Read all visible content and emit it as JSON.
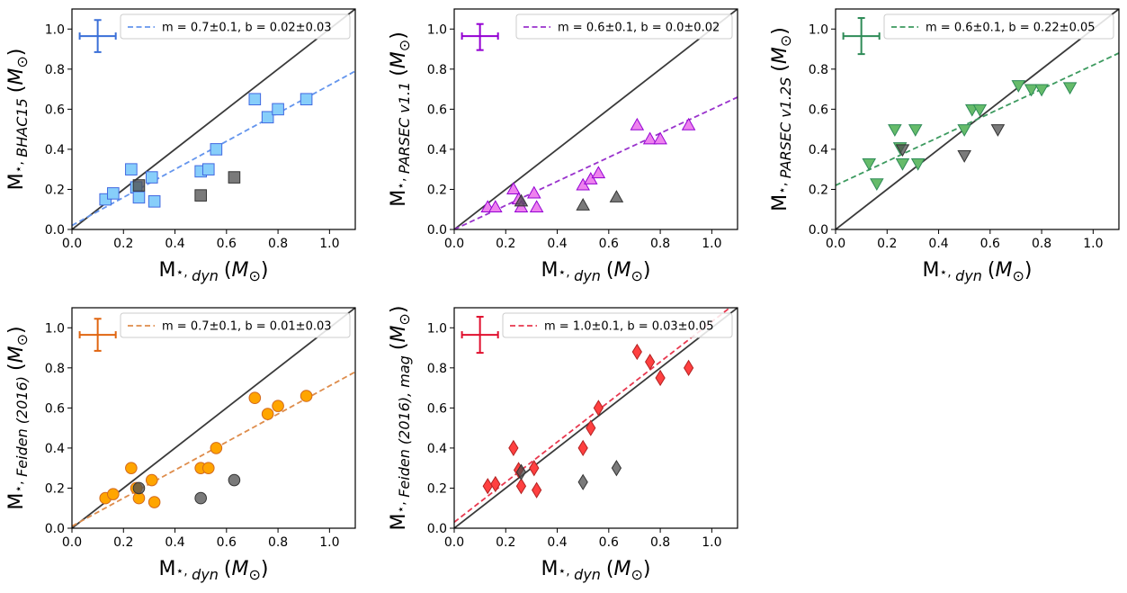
{
  "figure": {
    "x_axis_title": "M⋆, dyn (M⊙)",
    "x_ticks": [
      "0.0",
      "0.2",
      "0.4",
      "0.6",
      "0.8",
      "1.0"
    ],
    "y_ticks": [
      "0.0",
      "0.2",
      "0.4",
      "0.6",
      "0.8",
      "1.0"
    ]
  },
  "chart_data": [
    {
      "type": "scatter",
      "model": "BHAC15",
      "ylabel": "M⋆, BHAC15 (M⊙)",
      "xlabel": "M⋆, dyn (M⊙)",
      "xlim": [
        0,
        1.1
      ],
      "ylim": [
        0,
        1.1
      ],
      "marker": "square",
      "color": "#87cefa",
      "edge_color": "#4169e1",
      "fit_color": "#6495ed",
      "fit": {
        "m": 0.7,
        "b": 0.02
      },
      "legend": "m = 0.7±0.1, b = 0.02±0.03",
      "error_bar": {
        "x": 0.1,
        "y": 0.965,
        "x_err": 0.07,
        "y_err_up": 0.08,
        "y_err_down": 0.08
      },
      "points": [
        [
          0.13,
          0.15
        ],
        [
          0.16,
          0.18
        ],
        [
          0.23,
          0.3
        ],
        [
          0.25,
          0.21
        ],
        [
          0.26,
          0.16
        ],
        [
          0.31,
          0.26
        ],
        [
          0.32,
          0.14
        ],
        [
          0.5,
          0.29
        ],
        [
          0.53,
          0.3
        ],
        [
          0.56,
          0.4
        ],
        [
          0.71,
          0.65
        ],
        [
          0.76,
          0.56
        ],
        [
          0.8,
          0.6
        ],
        [
          0.91,
          0.65
        ]
      ],
      "grey_points": [
        [
          0.26,
          0.22
        ],
        [
          0.5,
          0.17
        ],
        [
          0.63,
          0.26
        ]
      ]
    },
    {
      "type": "scatter",
      "model": "PARSEC v1.1",
      "ylabel": "M⋆, PARSEC v1.1 (M⊙)",
      "xlabel": "M⋆, dyn (M⊙)",
      "xlim": [
        0,
        1.1
      ],
      "ylim": [
        0,
        1.1
      ],
      "marker": "triangle-up",
      "color": "#ee82ee",
      "edge_color": "#9400d3",
      "fit_color": "#9932cc",
      "fit": {
        "m": 0.6,
        "b": 0.0
      },
      "legend": "m = 0.6±0.1, b = 0.0±0.02",
      "error_bar": {
        "x": 0.1,
        "y": 0.965,
        "x_err": 0.07,
        "y_err_up": 0.06,
        "y_err_down": 0.07
      },
      "points": [
        [
          0.13,
          0.11
        ],
        [
          0.16,
          0.11
        ],
        [
          0.23,
          0.2
        ],
        [
          0.25,
          0.15
        ],
        [
          0.26,
          0.11
        ],
        [
          0.31,
          0.18
        ],
        [
          0.32,
          0.11
        ],
        [
          0.5,
          0.22
        ],
        [
          0.53,
          0.25
        ],
        [
          0.56,
          0.28
        ],
        [
          0.71,
          0.52
        ],
        [
          0.76,
          0.45
        ],
        [
          0.8,
          0.45
        ],
        [
          0.91,
          0.52
        ]
      ],
      "grey_points": [
        [
          0.26,
          0.14
        ],
        [
          0.5,
          0.12
        ],
        [
          0.63,
          0.16
        ]
      ]
    },
    {
      "type": "scatter",
      "model": "PARSEC v1.2S",
      "ylabel": "M⋆, PARSEC v1.2S (M⊙)",
      "xlabel": "M⋆, dyn (M⊙)",
      "xlim": [
        0,
        1.1
      ],
      "ylim": [
        0,
        1.1
      ],
      "marker": "triangle-down",
      "color": "#66bb6a",
      "edge_color": "#2e8b57",
      "fit_color": "#3c9a5f",
      "fit": {
        "m": 0.6,
        "b": 0.22
      },
      "legend": "m = 0.6±0.1, b = 0.22±0.05",
      "error_bar": {
        "x": 0.1,
        "y": 0.965,
        "x_err": 0.07,
        "y_err_up": 0.09,
        "y_err_down": 0.09
      },
      "points": [
        [
          0.13,
          0.33
        ],
        [
          0.16,
          0.23
        ],
        [
          0.23,
          0.5
        ],
        [
          0.25,
          0.41
        ],
        [
          0.26,
          0.33
        ],
        [
          0.31,
          0.5
        ],
        [
          0.32,
          0.33
        ],
        [
          0.5,
          0.5
        ],
        [
          0.53,
          0.6
        ],
        [
          0.56,
          0.6
        ],
        [
          0.71,
          0.72
        ],
        [
          0.76,
          0.7
        ],
        [
          0.8,
          0.7
        ],
        [
          0.91,
          0.71
        ]
      ],
      "grey_points": [
        [
          0.26,
          0.4
        ],
        [
          0.5,
          0.37
        ],
        [
          0.63,
          0.5
        ]
      ]
    },
    {
      "type": "scatter",
      "model": "Feiden (2016)",
      "ylabel": "M⋆, Feiden (2016) (M⊙)",
      "xlabel": "M⋆, dyn (M⊙)",
      "xlim": [
        0,
        1.1
      ],
      "ylim": [
        0,
        1.1
      ],
      "marker": "circle",
      "color": "#ffa500",
      "edge_color": "#d2691e",
      "fit_color": "#de8c4b",
      "fit": {
        "m": 0.7,
        "b": 0.01
      },
      "legend": "m = 0.7±0.1, b = 0.01±0.03",
      "error_bar": {
        "x": 0.1,
        "y": 0.965,
        "x_err": 0.07,
        "y_err_up": 0.08,
        "y_err_down": 0.08
      },
      "points": [
        [
          0.13,
          0.15
        ],
        [
          0.16,
          0.17
        ],
        [
          0.23,
          0.3
        ],
        [
          0.25,
          0.2
        ],
        [
          0.26,
          0.15
        ],
        [
          0.31,
          0.24
        ],
        [
          0.32,
          0.13
        ],
        [
          0.5,
          0.3
        ],
        [
          0.53,
          0.3
        ],
        [
          0.56,
          0.4
        ],
        [
          0.71,
          0.65
        ],
        [
          0.76,
          0.57
        ],
        [
          0.8,
          0.61
        ],
        [
          0.91,
          0.66
        ]
      ],
      "grey_points": [
        [
          0.26,
          0.2
        ],
        [
          0.5,
          0.15
        ],
        [
          0.63,
          0.24
        ]
      ]
    },
    {
      "type": "scatter",
      "model": "Feiden (2016), mag",
      "ylabel": "M⋆, Feiden (2016), mag (M⊙)",
      "xlabel": "M⋆, dyn (M⊙)",
      "xlim": [
        0,
        1.1
      ],
      "ylim": [
        0,
        1.1
      ],
      "marker": "diamond",
      "color": "#ff4040",
      "edge_color": "#b22222",
      "fit_color": "#e8384f",
      "fit": {
        "m": 1.0,
        "b": 0.03
      },
      "legend": "m = 1.0±0.1, b = 0.03±0.05",
      "error_bar": {
        "x": 0.1,
        "y": 0.965,
        "x_err": 0.07,
        "y_err_up": 0.09,
        "y_err_down": 0.09
      },
      "points": [
        [
          0.13,
          0.21
        ],
        [
          0.16,
          0.22
        ],
        [
          0.23,
          0.4
        ],
        [
          0.25,
          0.29
        ],
        [
          0.26,
          0.21
        ],
        [
          0.31,
          0.3
        ],
        [
          0.32,
          0.19
        ],
        [
          0.5,
          0.4
        ],
        [
          0.53,
          0.5
        ],
        [
          0.56,
          0.6
        ],
        [
          0.71,
          0.88
        ],
        [
          0.76,
          0.83
        ],
        [
          0.8,
          0.75
        ],
        [
          0.91,
          0.8
        ]
      ],
      "grey_points": [
        [
          0.26,
          0.28
        ],
        [
          0.5,
          0.23
        ],
        [
          0.63,
          0.3
        ]
      ]
    }
  ]
}
